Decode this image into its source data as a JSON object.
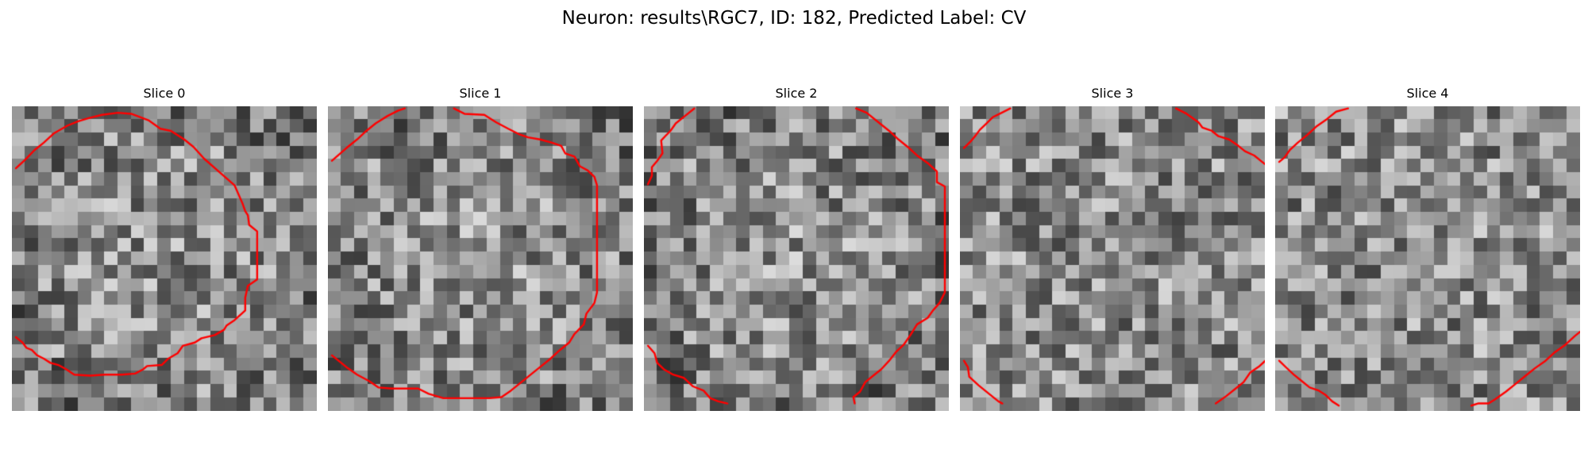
{
  "figure": {
    "title": "Neuron: results\\RGC7, ID: 182, Predicted Label: CV"
  },
  "grid_size": 23,
  "contour_color": "#ff0000",
  "colormap": "gray",
  "slices": [
    {
      "title": "Slice 0",
      "contours": [
        [
          [
            0.3,
            5.8
          ],
          [
            1,
            5
          ],
          [
            1.7,
            4.1
          ],
          [
            2.4,
            3.4
          ],
          [
            3.2,
            2.5
          ],
          [
            4.2,
            1.8
          ],
          [
            5,
            1.4
          ],
          [
            5.8,
            1.1
          ],
          [
            6.8,
            0.8
          ],
          [
            8,
            0.6
          ],
          [
            9,
            0.7
          ],
          [
            10.3,
            1.3
          ],
          [
            11.2,
            2.1
          ],
          [
            12,
            2.3
          ],
          [
            13,
            3.1
          ],
          [
            13.7,
            3.8
          ],
          [
            14.5,
            4.9
          ],
          [
            15.7,
            6.2
          ],
          [
            16.8,
            7.4
          ],
          [
            17.4,
            9.1
          ],
          [
            17.6,
            9.8
          ],
          [
            17.8,
            10.2
          ],
          [
            17.9,
            11.1
          ],
          [
            18.5,
            11.7
          ],
          [
            18.5,
            13.1
          ],
          [
            18.5,
            14.6
          ],
          [
            18.5,
            16.2
          ],
          [
            17.8,
            16.8
          ],
          [
            17.6,
            17.9
          ],
          [
            17.6,
            19.1
          ],
          [
            16.8,
            20
          ],
          [
            16.2,
            20.5
          ],
          [
            16,
            20.9
          ],
          [
            15.3,
            21.4
          ],
          [
            14.3,
            21.7
          ],
          [
            13.8,
            22.1
          ],
          [
            12.9,
            22.4
          ],
          [
            12.5,
            23.1
          ],
          [
            11.8,
            23.6
          ],
          [
            11.3,
            24.2
          ],
          [
            10.2,
            24.3
          ],
          [
            9.9,
            24.6
          ],
          [
            9.3,
            25
          ],
          [
            8.3,
            25.1
          ],
          [
            7,
            25.1
          ],
          [
            5.9,
            25.2
          ],
          [
            4.7,
            25.1
          ],
          [
            4.1,
            24.6
          ],
          [
            3.5,
            24.2
          ],
          [
            2.9,
            24
          ],
          [
            2.4,
            23.6
          ],
          [
            1.9,
            23.3
          ],
          [
            1.5,
            22.8
          ],
          [
            1.1,
            22.6
          ],
          [
            0.8,
            22.1
          ],
          [
            0.4,
            21.7
          ],
          [
            0.3,
            21.6
          ]
        ]
      ]
    },
    {
      "title": "Slice 1",
      "contours": [
        [
          [
            0.3,
            5.1
          ],
          [
            1.4,
            3.9
          ],
          [
            2.2,
            3.1
          ],
          [
            2.9,
            2.3
          ],
          [
            3.6,
            1.6
          ],
          [
            4.5,
            0.9
          ],
          [
            5.3,
            0.4
          ],
          [
            5.8,
            0.2
          ]
        ],
        [
          [
            9.5,
            0.2
          ],
          [
            10.3,
            0.7
          ],
          [
            11.8,
            0.8
          ],
          [
            12.7,
            1.5
          ],
          [
            13.6,
            2.1
          ],
          [
            14.4,
            2.6
          ],
          [
            15.1,
            2.9
          ],
          [
            16,
            3.1
          ],
          [
            16.9,
            3.4
          ],
          [
            17.6,
            3.7
          ],
          [
            17.9,
            4.4
          ],
          [
            18.6,
            4.7
          ],
          [
            19,
            5.6
          ],
          [
            19.6,
            6
          ],
          [
            20.1,
            6.6
          ],
          [
            20.3,
            7.4
          ],
          [
            20.3,
            8.7
          ],
          [
            20.3,
            10.1
          ],
          [
            20.3,
            11.6
          ],
          [
            20.3,
            13.1
          ],
          [
            20.3,
            14.6
          ],
          [
            20.3,
            16
          ],
          [
            20.3,
            17.4
          ],
          [
            20.1,
            18.4
          ],
          [
            19.5,
            19.4
          ],
          [
            19.3,
            20.4
          ],
          [
            18.6,
            21.3
          ],
          [
            18.2,
            22.1
          ],
          [
            17.5,
            22.8
          ],
          [
            16.8,
            23.6
          ],
          [
            16.1,
            24.3
          ],
          [
            15.3,
            25.1
          ],
          [
            14.6,
            25.8
          ],
          [
            13.8,
            26.6
          ],
          [
            13.1,
            27.2
          ],
          [
            12.2,
            27.3
          ],
          [
            11.1,
            27.3
          ],
          [
            9.9,
            27.3
          ],
          [
            8.7,
            27.3
          ],
          [
            7.6,
            26.9
          ],
          [
            6.8,
            26.4
          ],
          [
            5.9,
            26.4
          ],
          [
            4.8,
            26.4
          ],
          [
            3.8,
            26.3
          ],
          [
            3.1,
            25.7
          ],
          [
            2.2,
            25.1
          ],
          [
            1.5,
            24.5
          ],
          [
            0.8,
            23.8
          ],
          [
            0.3,
            23.3
          ]
        ]
      ]
    },
    {
      "title": "Slice 2",
      "contours": [
        [
          [
            3.8,
            0.2
          ],
          [
            3.1,
            0.9
          ],
          [
            2.4,
            1.6
          ],
          [
            2,
            2.3
          ],
          [
            1.6,
            2.8
          ],
          [
            1.3,
            3.2
          ],
          [
            1.4,
            4.4
          ],
          [
            1,
            5.1
          ],
          [
            0.6,
            5.7
          ],
          [
            0.6,
            6.5
          ],
          [
            0.3,
            7.3
          ]
        ],
        [
          [
            16,
            0.2
          ],
          [
            16.8,
            0.6
          ],
          [
            17.7,
            1.5
          ],
          [
            18.5,
            2.3
          ],
          [
            19.2,
            3.1
          ],
          [
            19.9,
            3.8
          ],
          [
            20.6,
            4.6
          ],
          [
            21.4,
            5.3
          ],
          [
            22.1,
            6.1
          ],
          [
            22.1,
            7.1
          ],
          [
            22.7,
            7.5
          ],
          [
            22.7,
            8.5
          ],
          [
            22.7,
            9.7
          ],
          [
            22.7,
            10.9
          ],
          [
            22.7,
            12.2
          ],
          [
            22.7,
            13.6
          ],
          [
            22.7,
            14.9
          ],
          [
            22.7,
            16.3
          ],
          [
            22.7,
            17.4
          ],
          [
            22.3,
            18.4
          ],
          [
            21.8,
            19.1
          ],
          [
            21.4,
            19.8
          ],
          [
            20.6,
            20.4
          ],
          [
            20.1,
            21.4
          ],
          [
            19.6,
            22.3
          ],
          [
            19,
            23
          ],
          [
            18.5,
            23.8
          ],
          [
            17.9,
            24.6
          ],
          [
            17.3,
            25.2
          ],
          [
            16.7,
            25.8
          ],
          [
            16.3,
            26.7
          ],
          [
            15.8,
            27.2
          ],
          [
            15.9,
            27.8
          ]
        ],
        [
          [
            0.3,
            22.4
          ],
          [
            0.8,
            23.1
          ],
          [
            1,
            24
          ],
          [
            1.5,
            24.6
          ],
          [
            2.2,
            25.1
          ],
          [
            3,
            25.4
          ],
          [
            3.7,
            26.2
          ],
          [
            4.5,
            26.6
          ],
          [
            5,
            27.3
          ],
          [
            5.6,
            27.6
          ],
          [
            6.3,
            27.8
          ]
        ]
      ]
    },
    {
      "title": "Slice 3",
      "contours": [
        [
          [
            0.3,
            3.9
          ],
          [
            0.8,
            3.3
          ],
          [
            1.2,
            2.7
          ],
          [
            1.5,
            2.2
          ],
          [
            2,
            1.6
          ],
          [
            2.5,
            1
          ],
          [
            3,
            0.7
          ],
          [
            3.8,
            0.2
          ]
        ],
        [
          [
            16.3,
            0.2
          ],
          [
            17.1,
            0.7
          ],
          [
            18,
            1.5
          ],
          [
            18.3,
            2
          ],
          [
            19,
            2.3
          ],
          [
            19.5,
            2.8
          ],
          [
            20.3,
            3.1
          ],
          [
            21,
            3.7
          ],
          [
            21.5,
            4.2
          ],
          [
            22.2,
            4.6
          ],
          [
            22.8,
            5.2
          ],
          [
            23.3,
            5.7
          ]
        ],
        [
          [
            23.3,
            23.5
          ],
          [
            22.6,
            24.3
          ],
          [
            21.9,
            24.9
          ],
          [
            21.4,
            25.8
          ],
          [
            20.8,
            26.4
          ],
          [
            20.1,
            27.1
          ],
          [
            19.3,
            27.8
          ]
        ],
        [
          [
            0.3,
            23.8
          ],
          [
            0.6,
            24.4
          ],
          [
            0.7,
            25.3
          ],
          [
            1.4,
            26.1
          ],
          [
            2.1,
            26.8
          ],
          [
            2.9,
            27.6
          ],
          [
            3.2,
            27.8
          ]
        ]
      ]
    },
    {
      "title": "Slice 4",
      "contours": [
        [
          [
            0.3,
            5.2
          ],
          [
            0.7,
            4.8
          ],
          [
            1.1,
            4.1
          ],
          [
            1.7,
            3.4
          ],
          [
            2.4,
            2.7
          ],
          [
            3.1,
            1.9
          ],
          [
            3.9,
            1.2
          ],
          [
            4.6,
            0.5
          ],
          [
            5.5,
            0.2
          ]
        ],
        [
          [
            23.3,
            20.8
          ],
          [
            22.6,
            21.5
          ],
          [
            21.9,
            22.3
          ],
          [
            21.1,
            23
          ],
          [
            20.4,
            23.8
          ],
          [
            19.6,
            24.5
          ],
          [
            18.9,
            25.2
          ],
          [
            18.1,
            26
          ],
          [
            17.4,
            26.7
          ],
          [
            16.6,
            27.4
          ],
          [
            16.1,
            27.8
          ],
          [
            15.3,
            27.8
          ],
          [
            14.8,
            28
          ]
        ],
        [
          [
            0.3,
            23.8
          ],
          [
            0.8,
            24.4
          ],
          [
            1.4,
            25.1
          ],
          [
            2,
            25.7
          ],
          [
            2.6,
            26.3
          ],
          [
            3.3,
            26.6
          ],
          [
            3.8,
            27
          ],
          [
            4.3,
            27.6
          ],
          [
            4.8,
            28
          ]
        ]
      ]
    }
  ]
}
